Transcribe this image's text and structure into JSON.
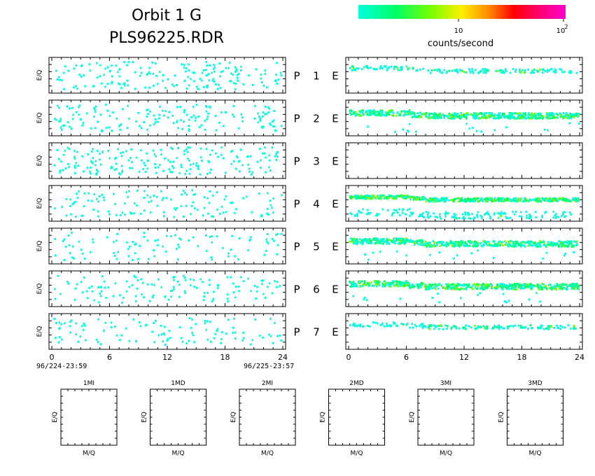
{
  "header": {
    "title": "Orbit 1 G",
    "filename": "PLS96225.RDR"
  },
  "colorbar": {
    "colors": [
      "#00ffdd",
      "#00ff66",
      "#77ff00",
      "#ffee00",
      "#ff8800",
      "#ff0000",
      "#ff0077",
      "#ff00cc"
    ],
    "tick_10": "10",
    "tick_100": "10",
    "tick_100_exp": "2",
    "label": "counts/second"
  },
  "time_axis": {
    "ticks": [
      "0",
      "6",
      "12",
      "18",
      "24"
    ],
    "start_label": "96/224-23:59",
    "end_label": "96/225-23:57"
  },
  "ylabel": "E/Q",
  "panel_labels": {
    "p": "P",
    "e": "E",
    "numbers": [
      "1",
      "2",
      "3",
      "4",
      "5",
      "6",
      "7"
    ]
  },
  "mass_panels": {
    "titles": [
      "1MI",
      "1MD",
      "2MI",
      "2MD",
      "3MI",
      "3MD"
    ],
    "ylabel": "E/Q",
    "xlabel": "M/Q"
  },
  "chart_data": {
    "type": "heatmap",
    "x_range": [
      0,
      24
    ],
    "x_unit": "hours",
    "colorscale": "log counts/second, 1 to 100",
    "left_panels_density": [
      0.55,
      0.5,
      0.6,
      0.4,
      0.3,
      0.4,
      0.35
    ],
    "right_panels": [
      {
        "band": "sparse",
        "level": 0.1
      },
      {
        "band": "dense",
        "level": 0.45
      },
      {
        "band": "empty",
        "level": 0.0
      },
      {
        "band": "dense-two-rows",
        "level": 0.6
      },
      {
        "band": "dense",
        "level": 0.4
      },
      {
        "band": "dense",
        "level": 0.6
      },
      {
        "band": "sparse",
        "level": 0.15
      }
    ]
  }
}
